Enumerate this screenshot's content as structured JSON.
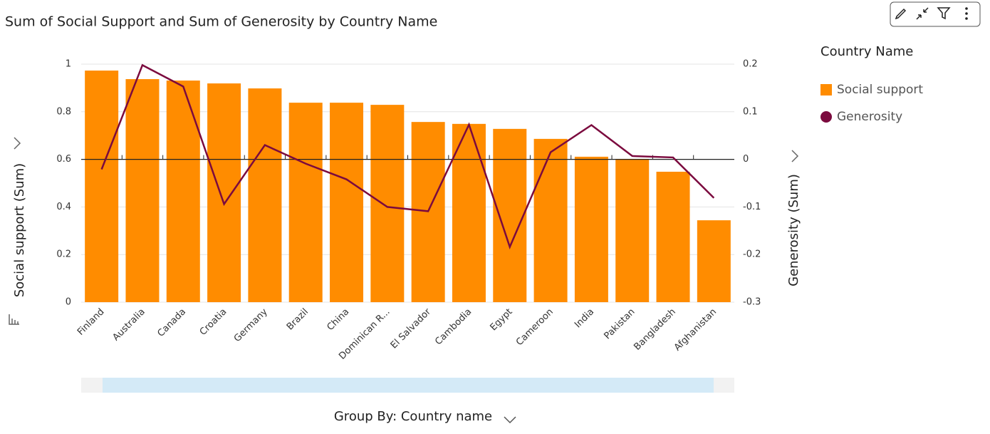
{
  "chart_data": {
    "type": "combo",
    "title": "Sum of Social Support and Sum of Generosity by Country Name",
    "y_label": "Social support (Sum)",
    "y2_label": "Generosity (Sum)",
    "legend_title": "Country Name",
    "legend": "right",
    "group_by": "Group By: Country name",
    "categories": [
      "Finland",
      "Australia",
      "Canada",
      "Croatia",
      "Germany",
      "Brazil",
      "China",
      "Dominican R...",
      "El Salvador",
      "Cambodia",
      "Egypt",
      "Cameroon",
      "India",
      "Pakistan",
      "Bangladesh",
      "Afghanistan"
    ],
    "series": [
      {
        "name": "Social support",
        "type": "bar",
        "color": "#ff8c00",
        "values": [
          0.973,
          0.937,
          0.931,
          0.919,
          0.898,
          0.838,
          0.838,
          0.829,
          0.757,
          0.749,
          0.728,
          0.686,
          0.611,
          0.602,
          0.548,
          0.344
        ]
      },
      {
        "name": "Generosity",
        "type": "line",
        "axis": "y2",
        "color": "#7b0a3e",
        "values": [
          -0.021,
          0.198,
          0.153,
          -0.094,
          0.03,
          -0.009,
          -0.042,
          -0.1,
          -0.109,
          0.073,
          -0.184,
          0.015,
          0.072,
          0.007,
          0.004,
          -0.081
        ]
      }
    ],
    "ylim": [
      0,
      1
    ],
    "yticks": [
      0,
      0.2,
      0.4,
      0.6,
      0.8,
      1
    ],
    "y2lim": [
      -0.3,
      0.2
    ],
    "y2ticks": [
      -0.3,
      -0.2,
      -0.1,
      0,
      0.1,
      0.2
    ],
    "grid": true
  }
}
